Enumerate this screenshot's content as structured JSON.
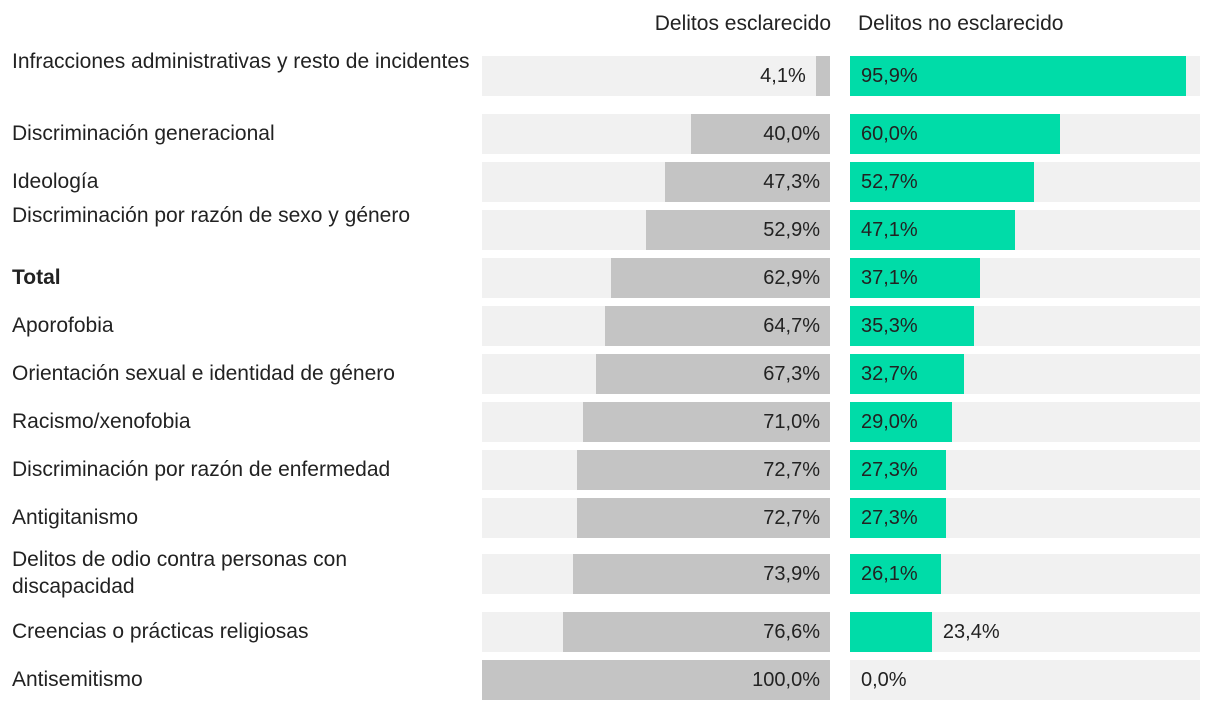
{
  "chart_data": {
    "type": "bar",
    "orientation": "horizontal-diverging",
    "columns": [
      "Delitos esclarecido",
      "Delitos no esclarecido"
    ],
    "categories": [
      "Infracciones administrativas y resto de incidentes",
      "Discriminación generacional",
      "Ideología",
      "Discriminación por razón de sexo y género",
      "Total",
      "Aporofobia",
      "Orientación sexual e identidad de género",
      "Racismo/xenofobia",
      "Discriminación por razón de enfermedad",
      "Antigitanismo",
      "Delitos de odio contra personas con discapacidad",
      "Creencias o prácticas religiosas",
      "Antisemitismo"
    ],
    "series": [
      {
        "name": "Delitos esclarecido",
        "values": [
          4.1,
          40.0,
          47.3,
          52.9,
          62.9,
          64.7,
          67.3,
          71.0,
          72.7,
          72.7,
          73.9,
          76.6,
          100.0
        ],
        "labels": [
          "4,1%",
          "40,0%",
          "47,3%",
          "52,9%",
          "62,9%",
          "64,7%",
          "67,3%",
          "71,0%",
          "72,7%",
          "72,7%",
          "73,9%",
          "76,6%",
          "100,0%"
        ],
        "color": "#c4c4c4"
      },
      {
        "name": "Delitos no esclarecido",
        "values": [
          95.9,
          60.0,
          52.7,
          47.1,
          37.1,
          35.3,
          32.7,
          29.0,
          27.3,
          27.3,
          26.1,
          23.4,
          0.0
        ],
        "labels": [
          "95,9%",
          "60,0%",
          "52,7%",
          "47,1%",
          "37,1%",
          "35,3%",
          "32,7%",
          "29,0%",
          "27,3%",
          "27,3%",
          "26,1%",
          "23,4%",
          "0,0%"
        ],
        "color": "#00dca8"
      }
    ],
    "bold_category": "Total",
    "xlim": [
      0,
      100
    ],
    "track_color": "#f1f1f1"
  }
}
